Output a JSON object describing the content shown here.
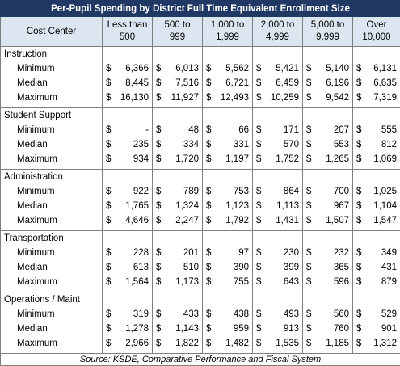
{
  "title": "Per-Pupil Spending by District Full Time Equivalent Enrollment Size",
  "header": {
    "cost_center": "Cost Center",
    "columns": [
      "Less than 500",
      "500 to 999",
      "1,000 to 1,999",
      "2,000 to 4,999",
      "5,000 to 9,999",
      "Over 10,000"
    ]
  },
  "currency_symbol": "$",
  "groups": [
    {
      "name": "Instruction",
      "rows": [
        {
          "label": "Minimum",
          "cells": [
            "6,366",
            "6,013",
            "5,562",
            "5,421",
            "5,140",
            "6,131"
          ]
        },
        {
          "label": "Median",
          "cells": [
            "8,445",
            "7,516",
            "6,721",
            "6,459",
            "6,196",
            "6,635"
          ]
        },
        {
          "label": "Maximum",
          "cells": [
            "16,130",
            "11,927",
            "12,493",
            "10,259",
            "9,542",
            "7,319"
          ]
        }
      ]
    },
    {
      "name": "Student Support",
      "rows": [
        {
          "label": "Minimum",
          "cells": [
            "-",
            "48",
            "66",
            "171",
            "207",
            "555"
          ]
        },
        {
          "label": "Median",
          "cells": [
            "235",
            "334",
            "331",
            "570",
            "553",
            "812"
          ]
        },
        {
          "label": "Maximum",
          "cells": [
            "934",
            "1,720",
            "1,197",
            "1,752",
            "1,265",
            "1,069"
          ]
        }
      ]
    },
    {
      "name": "Administration",
      "rows": [
        {
          "label": "Minimum",
          "cells": [
            "922",
            "789",
            "753",
            "864",
            "700",
            "1,025"
          ]
        },
        {
          "label": "Median",
          "cells": [
            "1,765",
            "1,324",
            "1,123",
            "1,113",
            "967",
            "1,104"
          ]
        },
        {
          "label": "Maximum",
          "cells": [
            "4,646",
            "2,247",
            "1,792",
            "1,431",
            "1,507",
            "1,547"
          ]
        }
      ]
    },
    {
      "name": "Transportation",
      "rows": [
        {
          "label": "Minimum",
          "cells": [
            "228",
            "201",
            "97",
            "230",
            "232",
            "349"
          ]
        },
        {
          "label": "Median",
          "cells": [
            "613",
            "510",
            "390",
            "399",
            "365",
            "431"
          ]
        },
        {
          "label": "Maximum",
          "cells": [
            "1,564",
            "1,173",
            "755",
            "643",
            "596",
            "879"
          ]
        }
      ]
    },
    {
      "name": "Operations / Maint",
      "rows": [
        {
          "label": "Minimum",
          "cells": [
            "319",
            "433",
            "438",
            "493",
            "560",
            "529"
          ]
        },
        {
          "label": "Median",
          "cells": [
            "1,278",
            "1,143",
            "959",
            "913",
            "760",
            "901"
          ]
        },
        {
          "label": "Maximum",
          "cells": [
            "2,966",
            "1,822",
            "1,482",
            "1,535",
            "1,185",
            "1,312"
          ]
        }
      ]
    }
  ],
  "source": "Source: KSDE, Comparative Performance and Fiscal System"
}
